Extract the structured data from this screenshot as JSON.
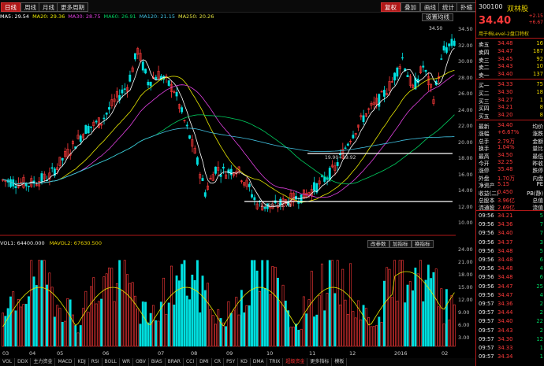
{
  "toolbar": {
    "left_buttons": [
      "日线",
      "周线",
      "月线",
      "更多周期"
    ],
    "right_buttons": [
      "复权",
      "叠加",
      "画线",
      "统计",
      "扑缩"
    ],
    "settings": "设置均线"
  },
  "ma_legend": [
    {
      "label": "MA5: 29.54",
      "color": "#ffffff"
    },
    {
      "label": "MA20: 29.36",
      "color": "#e6e600"
    },
    {
      "label": "MA30: 28.75",
      "color": "#e040e0"
    },
    {
      "label": "MA60: 26.91",
      "color": "#00d060"
    },
    {
      "label": "MA120: 21.15",
      "color": "#40c0e0"
    },
    {
      "label": "MA250: 20.26",
      "color": "#e0e040"
    }
  ],
  "y_axis_main": [
    "34.50",
    "32.00",
    "30.00",
    "28.00",
    "26.00",
    "24.00",
    "22.00",
    "20.00",
    "18.00",
    "16.00",
    "14.00",
    "12.00",
    "10.00"
  ],
  "y_axis_vol": [
    "24.00",
    "21.00",
    "18.00",
    "15.00",
    "12.00",
    "9.00",
    "6.00",
    "3.00"
  ],
  "annotations": {
    "high": "34.50",
    "line1": "19.90~19.92",
    "line2": "13.89~13.78"
  },
  "vol_legend": {
    "vol": "VOL1: 64400.000",
    "mavol": "MAVOL2: 67630.500"
  },
  "vol_buttons": [
    "改参数",
    "加指标",
    "换指标"
  ],
  "x_axis": [
    "03",
    "04",
    "05",
    "06",
    "07",
    "08",
    "09",
    "10",
    "11",
    "12",
    "2016",
    "02"
  ],
  "bottom_tabs": [
    "VOL",
    "DDX",
    "主力资金",
    "MACD",
    "KDJ",
    "RSI",
    "BOLL",
    "WR",
    "OBV",
    "BIAS",
    "BRAR",
    "CCI",
    "DMI",
    "CR",
    "PSY",
    "KD",
    "DMA",
    "TRIX",
    "超级资金",
    "更多指标",
    "模板"
  ],
  "bottom_active": "超级资金",
  "panel": {
    "code": "300100",
    "name": "双林股",
    "price": "34.40",
    "change": "+2.15",
    "change_pct": "+6.67",
    "level2": "用于档Level-2盘口特权",
    "asks": [
      {
        "label": "卖五",
        "price": "34.48",
        "vol": "16"
      },
      {
        "label": "卖四",
        "price": "34.47",
        "vol": "187"
      },
      {
        "label": "卖三",
        "price": "34.45",
        "vol": "92"
      },
      {
        "label": "卖二",
        "price": "34.43",
        "vol": "10"
      },
      {
        "label": "卖一",
        "price": "34.40",
        "vol": "137"
      }
    ],
    "bids": [
      {
        "label": "买一",
        "price": "34.33",
        "vol": "75"
      },
      {
        "label": "买二",
        "price": "34.30",
        "vol": "18"
      },
      {
        "label": "买三",
        "price": "34.27",
        "vol": "1"
      },
      {
        "label": "买四",
        "price": "34.21",
        "vol": "8"
      },
      {
        "label": "买五",
        "price": "34.20",
        "vol": "8"
      }
    ],
    "stats": [
      {
        "k": "最新",
        "v": "34.40",
        "k2": "均价"
      },
      {
        "k": "涨幅",
        "v": "+6.67%",
        "k2": "涨跌"
      },
      {
        "k": "总手",
        "v": "2.79万",
        "k2": "金额"
      },
      {
        "k": "换手",
        "v": "1.04%",
        "k2": "量比"
      },
      {
        "k": "最高",
        "v": "34.50",
        "k2": "最低"
      },
      {
        "k": "今开",
        "v": "32.25",
        "k2": "昨收"
      },
      {
        "k": "涨停",
        "v": "35.48",
        "k2": "跌停"
      },
      {
        "k": "外盘",
        "v": "1.70万",
        "k2": "内盘"
      },
      {
        "k": "净资产",
        "v": "5.15",
        "k2": "PE"
      },
      {
        "k": "收益(二)",
        "v": "0.450",
        "k2": "PB(静)"
      },
      {
        "k": "总股本",
        "v": "3.96亿",
        "k2": "总值"
      },
      {
        "k": "流通股",
        "v": "2.69亿",
        "k2": "流值"
      }
    ],
    "ticks": [
      {
        "t": "09:56",
        "p": "34.21",
        "v": "5"
      },
      {
        "t": "09:56",
        "p": "34.36",
        "v": "7"
      },
      {
        "t": "09:56",
        "p": "34.40",
        "v": "7"
      },
      {
        "t": "09:56",
        "p": "34.37",
        "v": "3"
      },
      {
        "t": "09:56",
        "p": "34.48",
        "v": "5"
      },
      {
        "t": "09:56",
        "p": "34.48",
        "v": "6"
      },
      {
        "t": "09:56",
        "p": "34.48",
        "v": "4"
      },
      {
        "t": "09:56",
        "p": "34.48",
        "v": "6"
      },
      {
        "t": "09:56",
        "p": "34.47",
        "v": "25"
      },
      {
        "t": "09:56",
        "p": "34.47",
        "v": "4"
      },
      {
        "t": "09:57",
        "p": "34.36",
        "v": "2"
      },
      {
        "t": "09:57",
        "p": "34.44",
        "v": "2"
      },
      {
        "t": "09:57",
        "p": "34.40",
        "v": "22"
      },
      {
        "t": "09:57",
        "p": "34.43",
        "v": "2"
      },
      {
        "t": "09:57",
        "p": "34.30",
        "v": "12"
      },
      {
        "t": "09:57",
        "p": "34.33",
        "v": "1"
      },
      {
        "t": "09:57",
        "p": "34.34",
        "v": "1"
      }
    ]
  },
  "colors": {
    "up": "#ff3a3a",
    "down": "#00e0e0",
    "accent": "#b01818"
  }
}
